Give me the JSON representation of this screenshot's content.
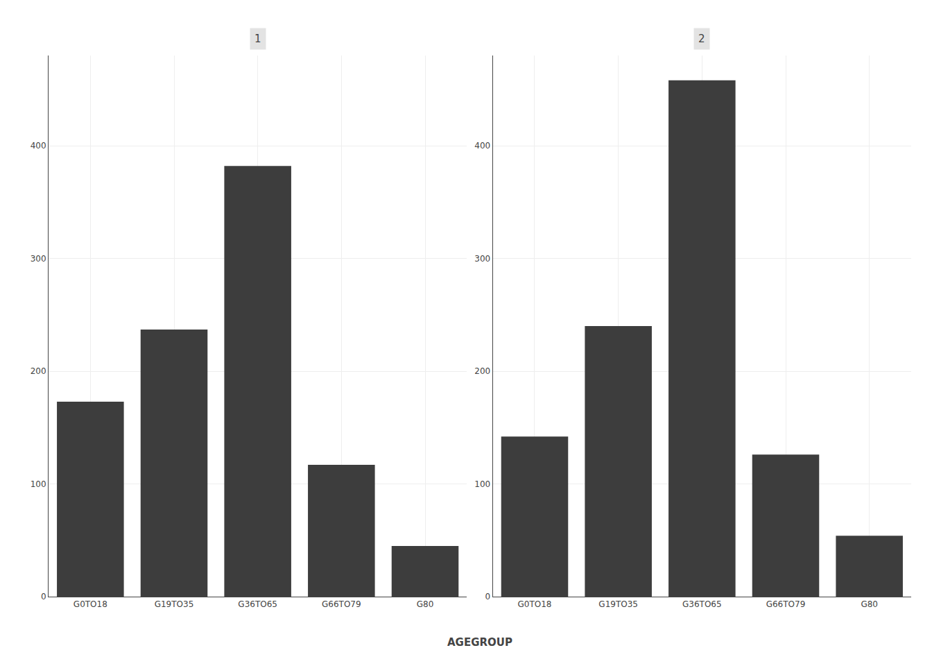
{
  "chart_data": [
    {
      "type": "bar",
      "title": "1",
      "xlabel": "AGEGROUP",
      "categories": [
        "G0TO18",
        "G19TO35",
        "G36TO65",
        "G66TO79",
        "G80"
      ],
      "values": [
        173,
        237,
        382,
        117,
        45
      ],
      "color": "#3d3d3d",
      "ylim": [
        0,
        480
      ],
      "yticks": [
        0,
        100,
        200,
        300,
        400
      ],
      "grid": true
    },
    {
      "type": "bar",
      "title": "2",
      "xlabel": "AGEGROUP",
      "categories": [
        "G0TO18",
        "G19TO35",
        "G36TO65",
        "G66TO79",
        "G80"
      ],
      "values": [
        142,
        240,
        458,
        126,
        54
      ],
      "color": "#3d3d3d",
      "ylim": [
        0,
        480
      ],
      "yticks": [
        0,
        100,
        200,
        300,
        400
      ],
      "grid": true
    }
  ]
}
